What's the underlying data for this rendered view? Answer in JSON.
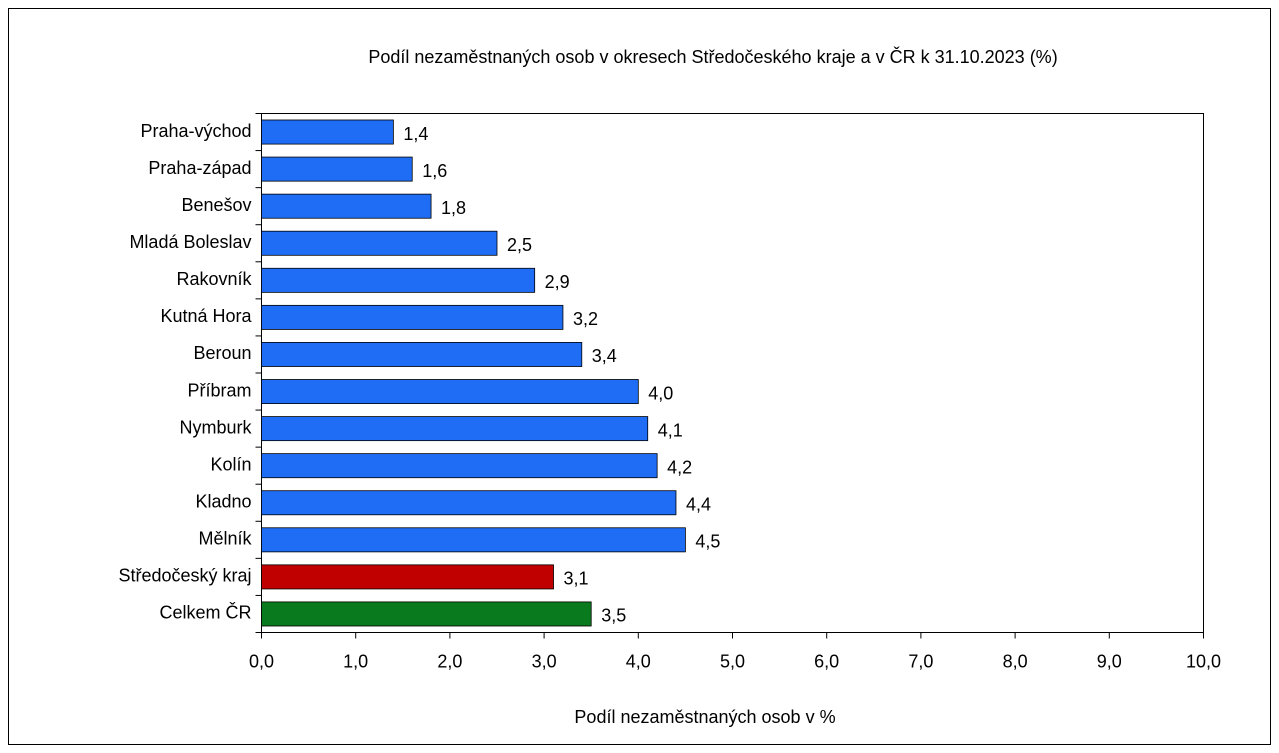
{
  "chart_data": {
    "type": "barh",
    "title": "Podíl nezaměstnaných osob v okresech Středočeského kraje a v ČR k 31.10.2023 (%)",
    "x_label": "Podíl nezaměstnaných osob v %",
    "categories": [
      "Praha-východ",
      "Praha-západ",
      "Benešov",
      "Mladá Boleslav",
      "Rakovník",
      "Kutná Hora",
      "Beroun",
      "Příbram",
      "Nymburk",
      "Kolín",
      "Kladno",
      "Mělník",
      "Středočeský kraj",
      "Celkem ČR"
    ],
    "values": [
      1.4,
      1.6,
      1.8,
      2.5,
      2.9,
      3.2,
      3.4,
      4.0,
      4.1,
      4.2,
      4.4,
      4.5,
      3.1,
      3.5
    ],
    "value_labels": [
      "1,4",
      "1,6",
      "1,8",
      "2,5",
      "2,9",
      "3,2",
      "3,4",
      "4,0",
      "4,1",
      "4,2",
      "4,4",
      "4,5",
      "3,1",
      "3,5"
    ],
    "colors": [
      "#1f6df5",
      "#1f6df5",
      "#1f6df5",
      "#1f6df5",
      "#1f6df5",
      "#1f6df5",
      "#1f6df5",
      "#1f6df5",
      "#1f6df5",
      "#1f6df5",
      "#1f6df5",
      "#1f6df5",
      "#c00000",
      "#0a7a1e"
    ],
    "xlim": [
      0,
      10
    ],
    "xticks": [
      {
        "value": 0,
        "label": "0,0"
      },
      {
        "value": 1,
        "label": "1,0"
      },
      {
        "value": 2,
        "label": "2,0"
      },
      {
        "value": 3,
        "label": "3,0"
      },
      {
        "value": 4,
        "label": "4,0"
      },
      {
        "value": 5,
        "label": "5,0"
      },
      {
        "value": 6,
        "label": "6,0"
      },
      {
        "value": 7,
        "label": "7,0"
      },
      {
        "value": 8,
        "label": "8,0"
      },
      {
        "value": 9,
        "label": "9,0"
      },
      {
        "value": 10,
        "label": "10,0"
      }
    ],
    "grid": false
  }
}
